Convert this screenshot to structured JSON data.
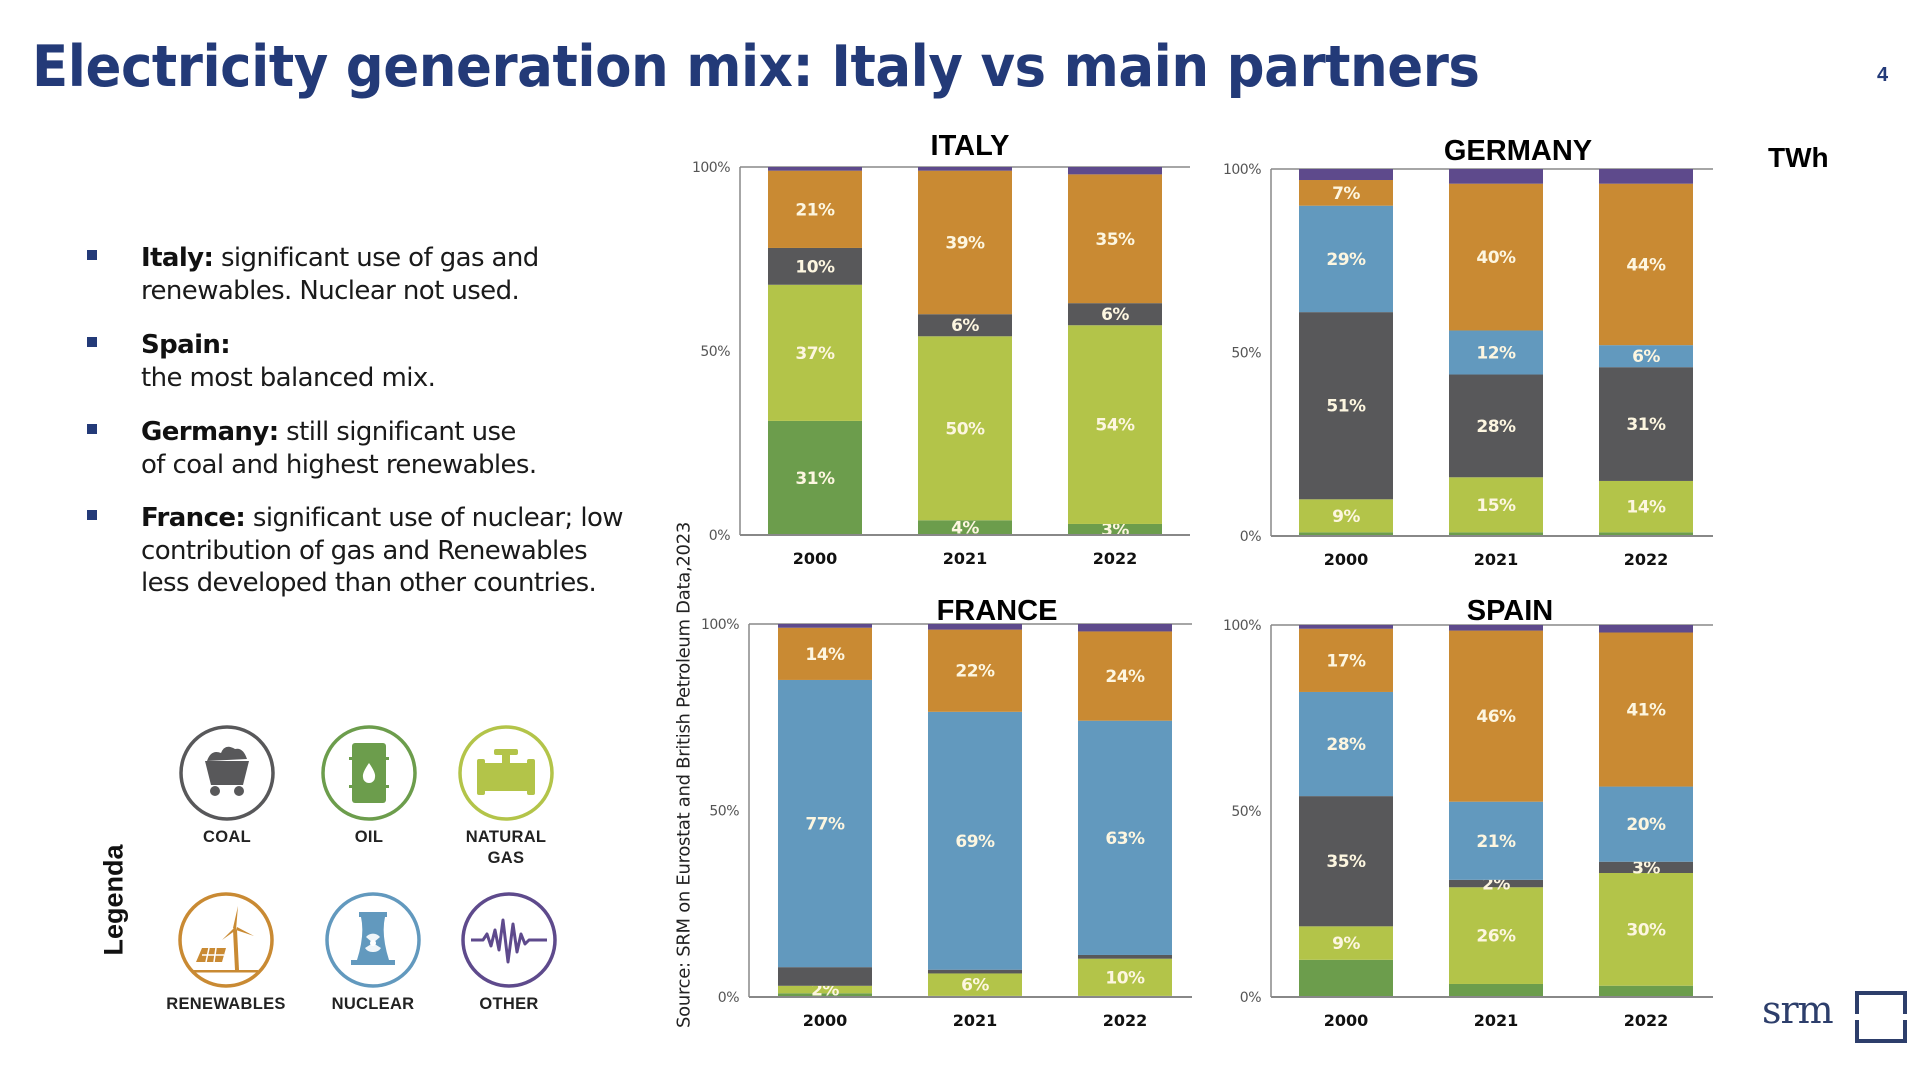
{
  "header": {
    "title": "Electricity generation mix: Italy vs main partners",
    "page_number": "4",
    "unit_label": "TWh"
  },
  "bullets": [
    {
      "bold": "Italy:",
      "lines": [
        "significant use of gas and",
        "renewables. Nuclear not used."
      ]
    },
    {
      "bold": "Spain:",
      "lines": [
        "",
        "the most balanced mix."
      ]
    },
    {
      "bold": "Germany:",
      "lines": [
        "still significant use",
        "of coal and highest renewables."
      ]
    },
    {
      "bold": "France:",
      "lines": [
        "significant use of nuclear; low",
        "contribution of gas and Renewables",
        "less developed than other countries."
      ]
    }
  ],
  "legend": {
    "title": "Legenda",
    "items": [
      {
        "key": "coal",
        "label": "COAL",
        "icon": "coal-cart-icon",
        "color": "#58585a"
      },
      {
        "key": "oil",
        "label": "OIL",
        "icon": "oil-barrel-icon",
        "color": "#6c9d4c"
      },
      {
        "key": "gas",
        "label": "NATURAL GAS",
        "label_lines": [
          "NATURAL",
          "GAS"
        ],
        "icon": "gas-valve-icon",
        "color": "#b3c449"
      },
      {
        "key": "renewables",
        "label": "RENEWABLES",
        "icon": "wind-solar-icon",
        "color": "#c98a33"
      },
      {
        "key": "nuclear",
        "label": "NUCLEAR",
        "icon": "nuclear-plant-icon",
        "color": "#6299be"
      },
      {
        "key": "other",
        "label": "OTHER",
        "icon": "waveform-icon",
        "color": "#5e4a8c"
      }
    ]
  },
  "source": "Source: SRM on Eurostat and British Petroleum Data,2023",
  "logo": {
    "text": "srm"
  },
  "chart_data": [
    {
      "type": "bar",
      "stacked": true,
      "title": "ITALY",
      "categories": [
        "2000",
        "2021",
        "2022"
      ],
      "ylim": [
        0,
        100
      ],
      "yticks": [
        "0%",
        "50%",
        "100%"
      ],
      "series": [
        {
          "name": "Oil",
          "key": "oil",
          "values": [
            31,
            4,
            3
          ],
          "labels": [
            "31%",
            "4%",
            "3%"
          ]
        },
        {
          "name": "Natural Gas",
          "key": "gas",
          "values": [
            37,
            50,
            54
          ],
          "labels": [
            "37%",
            "50%",
            "54%"
          ]
        },
        {
          "name": "Coal",
          "key": "coal",
          "values": [
            10,
            6,
            6
          ],
          "labels": [
            "10%",
            "6%",
            "6%"
          ]
        },
        {
          "name": "Nuclear",
          "key": "nuclear",
          "values": [
            0,
            0,
            0
          ],
          "labels": [
            "",
            "",
            ""
          ]
        },
        {
          "name": "Renewables",
          "key": "renewables",
          "values": [
            21,
            39,
            35
          ],
          "labels": [
            "21%",
            "39%",
            "35%"
          ]
        },
        {
          "name": "Other",
          "key": "other",
          "values": [
            1,
            1,
            2
          ],
          "labels": [
            "",
            "",
            ""
          ]
        }
      ]
    },
    {
      "type": "bar",
      "stacked": true,
      "title": "GERMANY",
      "categories": [
        "2000",
        "2021",
        "2022"
      ],
      "ylim": [
        0,
        100
      ],
      "yticks": [
        "0%",
        "50%",
        "100%"
      ],
      "series": [
        {
          "name": "Oil",
          "key": "oil",
          "values": [
            1,
            1,
            1
          ],
          "labels": [
            "",
            "",
            ""
          ]
        },
        {
          "name": "Natural Gas",
          "key": "gas",
          "values": [
            9,
            15,
            14
          ],
          "labels": [
            "9%",
            "15%",
            "14%"
          ]
        },
        {
          "name": "Coal",
          "key": "coal",
          "values": [
            51,
            28,
            31
          ],
          "labels": [
            "51%",
            "28%",
            "31%"
          ]
        },
        {
          "name": "Nuclear",
          "key": "nuclear",
          "values": [
            29,
            12,
            6
          ],
          "labels": [
            "29%",
            "12%",
            "6%"
          ]
        },
        {
          "name": "Renewables",
          "key": "renewables",
          "values": [
            7,
            40,
            44
          ],
          "labels": [
            "7%",
            "40%",
            "44%"
          ]
        },
        {
          "name": "Other",
          "key": "other",
          "values": [
            3,
            4,
            4
          ],
          "labels": [
            "",
            "",
            ""
          ]
        }
      ]
    },
    {
      "type": "bar",
      "stacked": true,
      "title": "FRANCE",
      "categories": [
        "2000",
        "2021",
        "2022"
      ],
      "ylim": [
        0,
        100
      ],
      "yticks": [
        "0%",
        "50%",
        "100%"
      ],
      "series": [
        {
          "name": "Oil",
          "key": "oil",
          "values": [
            1,
            0.3,
            0.3
          ],
          "labels": [
            "",
            "",
            ""
          ]
        },
        {
          "name": "Natural Gas",
          "key": "gas",
          "values": [
            2,
            6,
            10
          ],
          "labels": [
            "2%",
            "6%",
            "10%"
          ]
        },
        {
          "name": "Coal",
          "key": "coal",
          "values": [
            5,
            1,
            1
          ],
          "labels": [
            "",
            "",
            ""
          ]
        },
        {
          "name": "Nuclear",
          "key": "nuclear",
          "values": [
            77,
            69,
            63
          ],
          "labels": [
            "77%",
            "69%",
            "63%"
          ]
        },
        {
          "name": "Renewables",
          "key": "renewables",
          "values": [
            14,
            22,
            24
          ],
          "labels": [
            "14%",
            "22%",
            "24%"
          ]
        },
        {
          "name": "Other",
          "key": "other",
          "values": [
            1,
            1.5,
            2
          ],
          "labels": [
            "",
            "",
            ""
          ]
        }
      ]
    },
    {
      "type": "bar",
      "stacked": true,
      "title": "SPAIN",
      "categories": [
        "2000",
        "2021",
        "2022"
      ],
      "ylim": [
        0,
        100
      ],
      "yticks": [
        "0%",
        "50%",
        "100%"
      ],
      "series": [
        {
          "name": "Oil",
          "key": "oil",
          "values": [
            10,
            3.5,
            3
          ],
          "labels": [
            "",
            "",
            ""
          ]
        },
        {
          "name": "Natural Gas",
          "key": "gas",
          "values": [
            9,
            26,
            30
          ],
          "labels": [
            "9%",
            "26%",
            "30%"
          ]
        },
        {
          "name": "Coal",
          "key": "coal",
          "values": [
            35,
            2,
            3
          ],
          "labels": [
            "35%",
            "2%",
            "3%"
          ]
        },
        {
          "name": "Nuclear",
          "key": "nuclear",
          "values": [
            28,
            21,
            20
          ],
          "labels": [
            "28%",
            "21%",
            "20%"
          ]
        },
        {
          "name": "Renewables",
          "key": "renewables",
          "values": [
            17,
            46,
            41
          ],
          "labels": [
            "17%",
            "46%",
            "41%"
          ]
        },
        {
          "name": "Other",
          "key": "other",
          "values": [
            1,
            1.5,
            2
          ],
          "labels": [
            "",
            "",
            ""
          ]
        }
      ]
    }
  ]
}
